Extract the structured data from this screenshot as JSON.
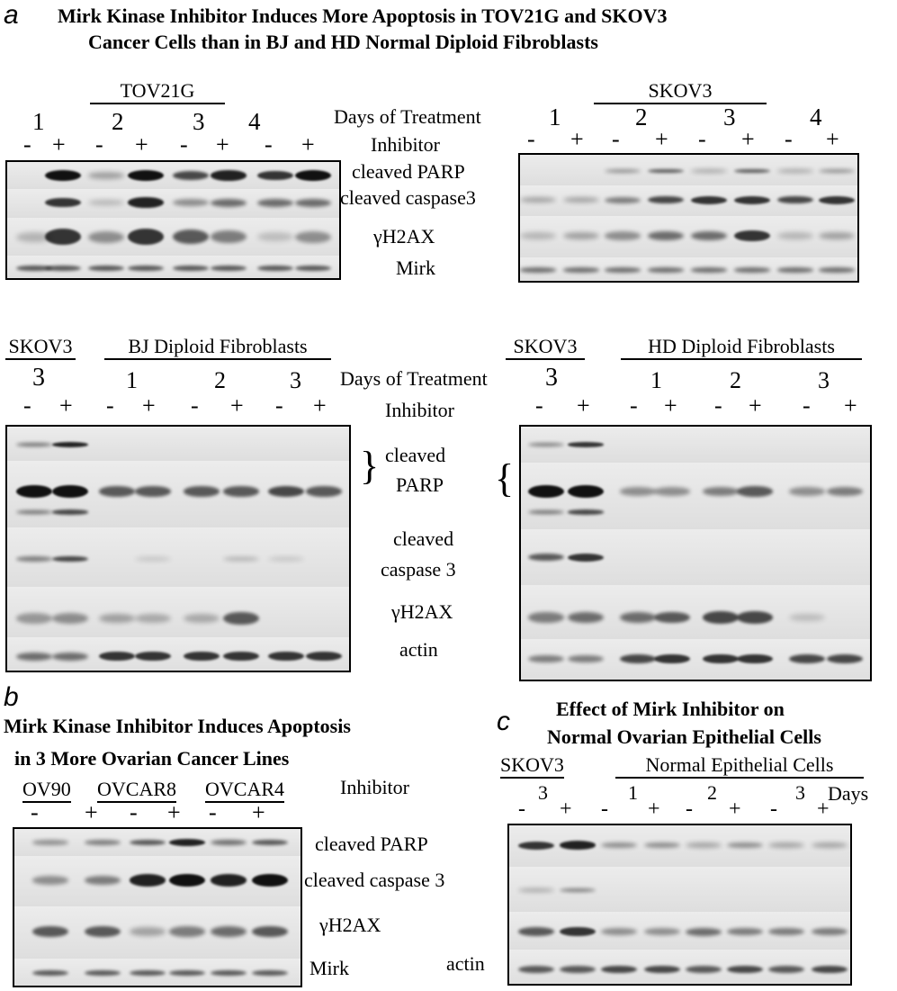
{
  "panel_a": {
    "letter": "a",
    "title_line1": "Mirk Kinase Inhibitor Induces More Apoptosis in TOV21G and SKOV3",
    "title_line2": "Cancer Cells than in BJ and HD Normal Diploid Fibroblasts",
    "top": {
      "tov21g": "TOV21G",
      "skov3": "SKOV3",
      "days_label": "Days of Treatment",
      "inhibitor_label": "Inhibitor",
      "days": [
        "1",
        "2",
        "3",
        "4"
      ],
      "treatments": [
        "-",
        "+",
        "-",
        "+",
        "-",
        "+",
        "-",
        "+"
      ],
      "bands": [
        "cleaved PARP",
        "cleaved caspase3",
        "γH2AX",
        "Mirk"
      ]
    },
    "bottom": {
      "skov3": "SKOV3",
      "bj": "BJ Diploid Fibroblasts",
      "hd": "HD Diploid Fibroblasts",
      "days_label": "Days of Treatment",
      "inhibitor_label": "Inhibitor",
      "skov3_day": "3",
      "days": [
        "1",
        "2",
        "3"
      ],
      "treatments": [
        "-",
        "+",
        "-",
        "+",
        "-",
        "+",
        "-",
        "+"
      ],
      "brace_left": "}",
      "brace_right": "{",
      "bands": [
        "cleaved",
        "PARP",
        "cleaved",
        "caspase 3",
        "γH2AX",
        "actin"
      ]
    }
  },
  "panel_b": {
    "letter": "b",
    "title_line1": "Mirk Kinase Inhibitor Induces Apoptosis",
    "title_line2": "in 3 More Ovarian Cancer Lines",
    "cell_lines": [
      "OV90",
      "OVCAR8",
      "OVCAR4"
    ],
    "inhibitor_label": "Inhibitor",
    "treatments": [
      "-",
      "+",
      "-",
      "+",
      "-",
      "+"
    ],
    "bands": [
      "cleaved PARP",
      "cleaved caspase 3",
      "γH2AX",
      "Mirk"
    ]
  },
  "panel_c": {
    "letter": "c",
    "title_line1": "Effect of Mirk Inhibitor on",
    "title_line2": "Normal Ovarian Epithelial Cells",
    "skov3": "SKOV3",
    "normal": "Normal Epithelial Cells",
    "skov3_day": "3",
    "days": [
      "1",
      "2",
      "3"
    ],
    "days_label": "Days",
    "treatments": [
      "-",
      "+",
      "-",
      "+",
      "-",
      "+",
      "-",
      "+"
    ],
    "bands": [
      "actin"
    ]
  }
}
